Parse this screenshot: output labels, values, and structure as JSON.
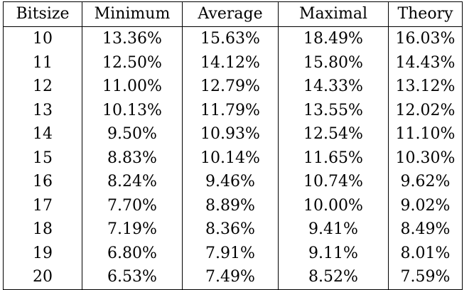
{
  "table": {
    "headers": [
      "Bitsize",
      "Minimum",
      "Average",
      "Maximal",
      "Theory"
    ],
    "rows": [
      [
        "10",
        "13.36%",
        "15.63%",
        "18.49%",
        "16.03%"
      ],
      [
        "11",
        "12.50%",
        "14.12%",
        "15.80%",
        "14.43%"
      ],
      [
        "12",
        "11.00%",
        "12.79%",
        "14.33%",
        "13.12%"
      ],
      [
        "13",
        "10.13%",
        "11.79%",
        "13.55%",
        "12.02%"
      ],
      [
        "14",
        "9.50%",
        "10.93%",
        "12.54%",
        "11.10%"
      ],
      [
        "15",
        "8.83%",
        "10.14%",
        "11.65%",
        "10.30%"
      ],
      [
        "16",
        "8.24%",
        "9.46%",
        "10.74%",
        "9.62%"
      ],
      [
        "17",
        "7.70%",
        "8.89%",
        "10.00%",
        "9.02%"
      ],
      [
        "18",
        "7.19%",
        "8.36%",
        "9.41%",
        "8.49%"
      ],
      [
        "19",
        "6.80%",
        "7.91%",
        "9.11%",
        "8.01%"
      ],
      [
        "20",
        "6.53%",
        "7.49%",
        "8.52%",
        "7.59%"
      ]
    ]
  }
}
